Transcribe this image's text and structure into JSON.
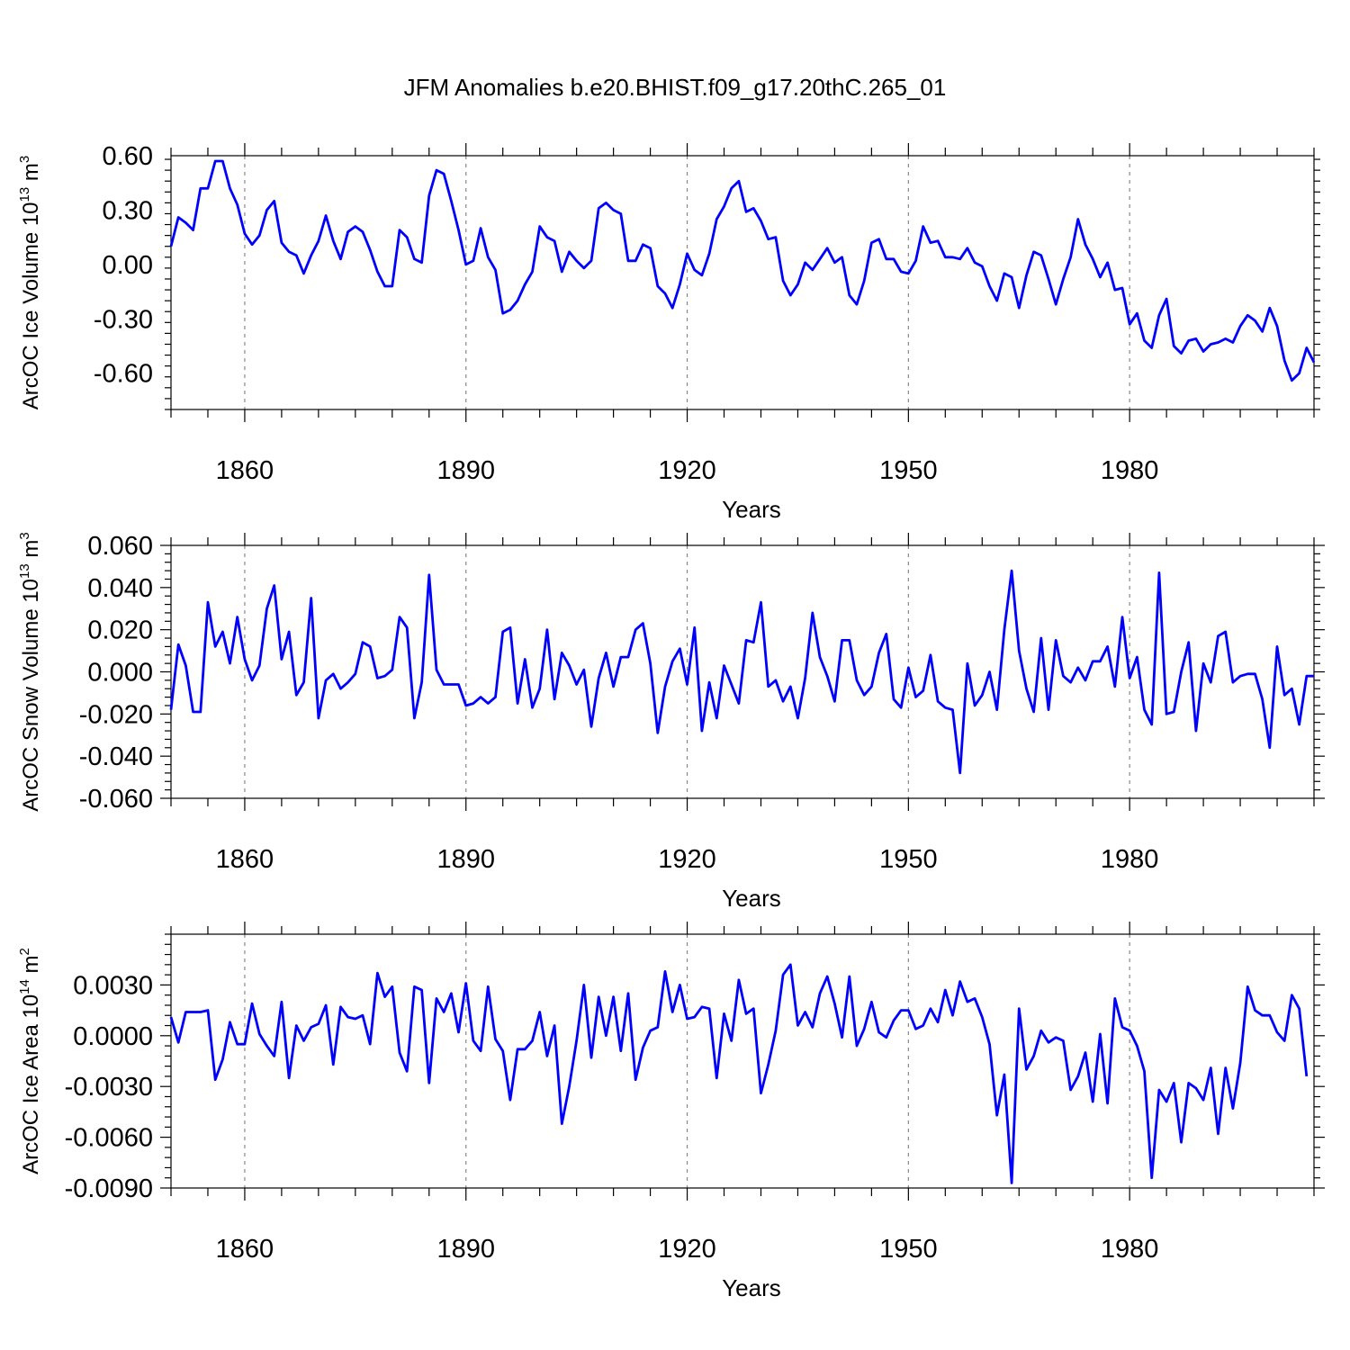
{
  "figure_title": "JFM Anomalies b.e20.BHIST.f09_g17.20thC.265_01",
  "colors": {
    "line": "#0000ff",
    "grid": "#888888",
    "axes": "#000000"
  },
  "chart_data": [
    {
      "type": "line",
      "ylabel": "ArcOC Ice Volume 10",
      "ylabel_sup": "13",
      "ylabel_unit": " m",
      "ylabel_unit_sup": "3",
      "xlabel": "Years",
      "xlim": [
        1850,
        2005
      ],
      "ylim": [
        -0.8,
        0.6
      ],
      "xticks": [
        1860,
        1890,
        1920,
        1950,
        1980
      ],
      "xtick_labels": [
        "1860",
        "1890",
        "1920",
        "1950",
        "1980"
      ],
      "yticks": [
        0.6,
        0.3,
        0.0,
        -0.3,
        -0.6
      ],
      "ytick_labels": [
        "0.60",
        "0.30",
        "0.00",
        "-0.30",
        "-0.60"
      ],
      "x_start": 1850,
      "values": [
        0.1,
        0.26,
        0.23,
        0.19,
        0.42,
        0.42,
        0.57,
        0.57,
        0.42,
        0.33,
        0.17,
        0.11,
        0.16,
        0.3,
        0.35,
        0.12,
        0.07,
        0.05,
        -0.05,
        0.05,
        0.13,
        0.27,
        0.13,
        0.03,
        0.18,
        0.21,
        0.18,
        0.08,
        -0.04,
        -0.12,
        -0.12,
        0.19,
        0.15,
        0.03,
        0.01,
        0.38,
        0.52,
        0.5,
        0.35,
        0.19,
        0.0,
        0.02,
        0.2,
        0.04,
        -0.03,
        -0.27,
        -0.25,
        -0.2,
        -0.11,
        -0.04,
        0.21,
        0.15,
        0.13,
        -0.04,
        0.07,
        0.02,
        -0.02,
        0.02,
        0.31,
        0.34,
        0.3,
        0.28,
        0.02,
        0.02,
        0.11,
        0.09,
        -0.12,
        -0.16,
        -0.24,
        -0.11,
        0.06,
        -0.03,
        -0.06,
        0.06,
        0.25,
        0.32,
        0.42,
        0.46,
        0.29,
        0.31,
        0.24,
        0.14,
        0.15,
        -0.09,
        -0.17,
        -0.11,
        0.01,
        -0.03,
        0.03,
        0.09,
        0.01,
        0.04,
        -0.17,
        -0.22,
        -0.09,
        0.12,
        0.14,
        0.03,
        0.03,
        -0.04,
        -0.05,
        0.02,
        0.21,
        0.12,
        0.13,
        0.04,
        0.04,
        0.03,
        0.09,
        0.01,
        -0.01,
        -0.12,
        -0.2,
        -0.05,
        -0.07,
        -0.24,
        -0.06,
        0.07,
        0.05,
        -0.08,
        -0.22,
        -0.08,
        0.04,
        0.25,
        0.11,
        0.03,
        -0.07,
        0.01,
        -0.14,
        -0.13,
        -0.33,
        -0.27,
        -0.42,
        -0.46,
        -0.28,
        -0.19,
        -0.45,
        -0.49,
        -0.42,
        -0.41,
        -0.48,
        -0.44,
        -0.43,
        -0.41,
        -0.43,
        -0.34,
        -0.28,
        -0.31,
        -0.37,
        -0.24,
        -0.34,
        -0.53,
        -0.64,
        -0.6,
        -0.46,
        -0.54
      ]
    },
    {
      "type": "line",
      "ylabel": "ArcOC Snow Volume 10",
      "ylabel_sup": "13",
      "ylabel_unit": " m",
      "ylabel_unit_sup": "3",
      "xlabel": "Years",
      "xlim": [
        1850,
        2005
      ],
      "ylim": [
        -0.06,
        0.06
      ],
      "xticks": [
        1860,
        1890,
        1920,
        1950,
        1980
      ],
      "xtick_labels": [
        "1860",
        "1890",
        "1920",
        "1950",
        "1980"
      ],
      "yticks": [
        0.06,
        0.04,
        0.02,
        0.0,
        -0.02,
        -0.04,
        -0.06
      ],
      "ytick_labels": [
        "0.060",
        "0.040",
        "0.020",
        "0.000",
        "-0.020",
        "-0.040",
        "-0.060"
      ],
      "x_start": 1850,
      "values": [
        -0.018,
        0.013,
        0.003,
        -0.019,
        -0.019,
        0.033,
        0.012,
        0.019,
        0.004,
        0.026,
        0.006,
        -0.004,
        0.003,
        0.03,
        0.041,
        0.006,
        0.019,
        -0.011,
        -0.005,
        0.035,
        -0.022,
        -0.004,
        -0.001,
        -0.008,
        -0.005,
        -0.001,
        0.014,
        0.012,
        -0.003,
        -0.002,
        0.001,
        0.026,
        0.021,
        -0.022,
        -0.005,
        0.046,
        0.001,
        -0.006,
        -0.006,
        -0.006,
        -0.016,
        -0.015,
        -0.012,
        -0.015,
        -0.012,
        0.019,
        0.021,
        -0.015,
        0.006,
        -0.017,
        -0.008,
        0.02,
        -0.013,
        0.009,
        0.003,
        -0.006,
        0.001,
        -0.026,
        -0.003,
        0.009,
        -0.007,
        0.007,
        0.007,
        0.02,
        0.023,
        0.004,
        -0.029,
        -0.007,
        0.005,
        0.011,
        -0.006,
        0.021,
        -0.028,
        -0.005,
        -0.022,
        0.003,
        -0.006,
        -0.015,
        0.015,
        0.014,
        0.033,
        -0.007,
        -0.004,
        -0.014,
        -0.007,
        -0.022,
        -0.003,
        0.028,
        0.007,
        -0.002,
        -0.014,
        0.015,
        0.015,
        -0.004,
        -0.011,
        -0.007,
        0.009,
        0.018,
        -0.013,
        -0.017,
        0.002,
        -0.012,
        -0.009,
        0.008,
        -0.014,
        -0.017,
        -0.018,
        -0.048,
        0.004,
        -0.016,
        -0.011,
        0.0,
        -0.018,
        0.02,
        0.048,
        0.01,
        -0.008,
        -0.019,
        0.016,
        -0.018,
        0.015,
        -0.002,
        -0.005,
        0.002,
        -0.004,
        0.005,
        0.005,
        0.012,
        -0.007,
        0.026,
        -0.003,
        0.007,
        -0.018,
        -0.025,
        0.047,
        -0.02,
        -0.019,
        0.0,
        0.014,
        -0.028,
        0.004,
        -0.005,
        0.017,
        0.019,
        -0.005,
        -0.002,
        -0.001,
        -0.001,
        -0.013,
        -0.036,
        0.012,
        -0.011,
        -0.008,
        -0.025,
        -0.002,
        -0.002
      ]
    },
    {
      "type": "line",
      "ylabel": "ArcOC Ice Area 10",
      "ylabel_sup": "14",
      "ylabel_unit": " m",
      "ylabel_unit_sup": "2",
      "xlabel": "Years",
      "xlim": [
        1850,
        2005
      ],
      "ylim": [
        -0.009,
        0.006
      ],
      "xticks": [
        1860,
        1890,
        1920,
        1950,
        1980
      ],
      "xtick_labels": [
        "1860",
        "1890",
        "1920",
        "1950",
        "1980"
      ],
      "yticks": [
        0.003,
        0.0,
        -0.003,
        -0.006,
        -0.009
      ],
      "ytick_labels": [
        "0.0030",
        "0.0000",
        "-0.0030",
        "-0.0060",
        "-0.0090"
      ],
      "x_start": 1850,
      "values": [
        0.0011,
        -0.0004,
        0.0014,
        0.0014,
        0.0014,
        0.0015,
        -0.0026,
        -0.0014,
        0.0008,
        -0.0005,
        -0.0005,
        0.0019,
        0.0001,
        -0.0006,
        -0.0012,
        0.002,
        -0.0025,
        0.0006,
        -0.0003,
        0.0005,
        0.0007,
        0.0018,
        -0.0017,
        0.0017,
        0.0011,
        0.001,
        0.0012,
        -0.0005,
        0.0037,
        0.0023,
        0.0029,
        -0.001,
        -0.0021,
        0.0029,
        0.0027,
        -0.0028,
        0.0022,
        0.0014,
        0.0025,
        0.0002,
        0.0031,
        -0.0003,
        -0.0009,
        0.0029,
        -0.0002,
        -0.0009,
        -0.0038,
        -0.0008,
        -0.0008,
        -0.0003,
        0.0014,
        -0.0012,
        0.0006,
        -0.0052,
        -0.003,
        -0.0003,
        0.003,
        -0.0013,
        0.0023,
        0.0,
        0.0023,
        -0.0009,
        0.0025,
        -0.0026,
        -0.0007,
        0.0003,
        0.0005,
        0.0038,
        0.0014,
        0.003,
        0.001,
        0.0011,
        0.0017,
        0.0016,
        -0.0025,
        0.0013,
        -0.0003,
        0.0033,
        0.0013,
        0.0016,
        -0.0034,
        -0.0017,
        0.0003,
        0.0036,
        0.0042,
        0.0006,
        0.0014,
        0.0005,
        0.0025,
        0.0035,
        0.0019,
        -0.0001,
        0.0035,
        -0.0006,
        0.0004,
        0.002,
        0.0002,
        -0.0001,
        0.0009,
        0.0015,
        0.0015,
        0.0004,
        0.0006,
        0.0016,
        0.0008,
        0.0027,
        0.0012,
        0.0032,
        0.002,
        0.0022,
        0.0011,
        -0.0005,
        -0.0047,
        -0.0023,
        -0.0087,
        0.0016,
        -0.002,
        -0.0012,
        0.0003,
        -0.0004,
        -0.0001,
        -0.0003,
        -0.0032,
        -0.0024,
        -0.001,
        -0.0039,
        0.0001,
        -0.004,
        0.0022,
        0.0005,
        0.0003,
        -0.0006,
        -0.0021,
        -0.0084,
        -0.0032,
        -0.0039,
        -0.0028,
        -0.0063,
        -0.0028,
        -0.0031,
        -0.0038,
        -0.0019,
        -0.0058,
        -0.0019,
        -0.0043,
        -0.0016,
        0.0029,
        0.0015,
        0.0012,
        0.0012,
        0.0002,
        -0.0003,
        0.0024,
        0.0016,
        -0.0024
      ]
    }
  ]
}
